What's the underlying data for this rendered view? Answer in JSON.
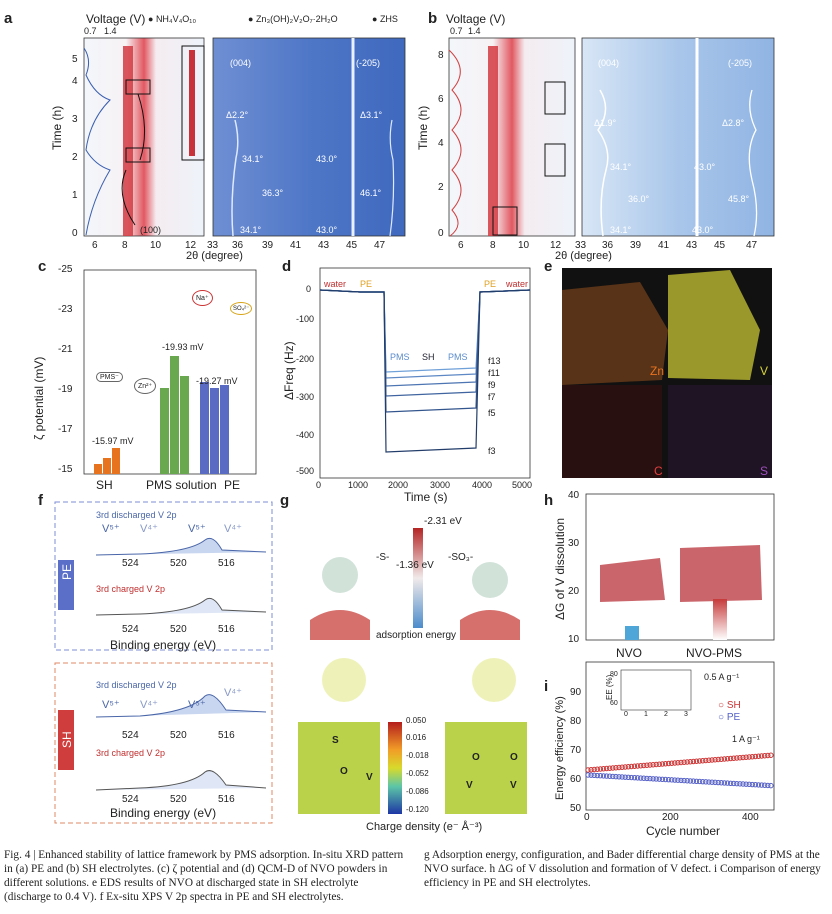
{
  "panels": {
    "a": {
      "label": "a",
      "axis_top": "Voltage (V)",
      "voltage_ticks": [
        "0.7",
        "1.4"
      ],
      "legend": [
        "NH₄V₄O₁₀",
        "Zn₃(OH)₂V₂O₇·2H₂O",
        "ZHS"
      ],
      "ylabel": "Time (h)",
      "yticks": [
        "0",
        "1",
        "2",
        "3",
        "4",
        "5"
      ],
      "xticks_left": [
        "6",
        "8",
        "10",
        "12"
      ],
      "xticks_right": [
        "33",
        "36",
        "39",
        "41",
        "43",
        "45",
        "47"
      ],
      "xlabel": "2θ (degree)",
      "annotations": [
        "(004)",
        "(-205)",
        "Δ2.2°",
        "Δ3.1°",
        "34.1°",
        "43.0°",
        "36.3°",
        "46.1°",
        "34.1°",
        "43.0°",
        "(100)"
      ]
    },
    "b": {
      "label": "b",
      "axis_top": "Voltage (V)",
      "voltage_ticks": [
        "0.7",
        "1.4"
      ],
      "ylabel": "Time (h)",
      "yticks": [
        "0",
        "2",
        "4",
        "6",
        "8"
      ],
      "xticks_left": [
        "6",
        "8",
        "10",
        "12"
      ],
      "xticks_right": [
        "33",
        "36",
        "39",
        "41",
        "43",
        "45",
        "47"
      ],
      "xlabel": "2θ (degree)",
      "annotations": [
        "(004)",
        "(-205)",
        "Δ1.9°",
        "Δ2.8°",
        "34.1°",
        "43.0°",
        "36.0°",
        "45.8°",
        "34.1°",
        "43.0°"
      ]
    },
    "c": {
      "label": "c",
      "ylabel": "ζ potential (mV)",
      "yticks": [
        "-25",
        "-23",
        "-21",
        "-19",
        "-17",
        "-15"
      ],
      "categories": [
        "SH",
        "PMS solution",
        "PE"
      ],
      "value_labels": [
        "-15.97 mV",
        "-19.93 mV",
        "-19.27 mV"
      ],
      "pms_tag": "PMS⁻",
      "zn_tag": "Zn²⁺",
      "na_tag": "Na⁺",
      "so_tag": "SO₄²⁻"
    },
    "d": {
      "label": "d",
      "ylabel": "ΔFreq (Hz)",
      "xlabel": "Time (s)",
      "xticks": [
        "0",
        "1000",
        "2000",
        "3000",
        "4000",
        "5000"
      ],
      "yticks": [
        "0",
        "-100",
        "-200",
        "-300",
        "-400",
        "-500"
      ],
      "labels": [
        "water",
        "PE",
        "PMS",
        "SH",
        "PMS",
        "PE",
        "water"
      ],
      "harmonics": [
        "f13",
        "f11",
        "f9",
        "f7",
        "f5",
        "f3"
      ]
    },
    "e": {
      "label": "e",
      "elements": [
        "Zn",
        "V",
        "C",
        "S"
      ]
    },
    "f": {
      "label": "f",
      "groups": [
        "PE",
        "SH"
      ],
      "discharged": "3rd discharged V 2p",
      "charged": "3rd charged V 2p",
      "peaks": [
        "V⁵⁺",
        "V⁴⁺",
        "V⁵⁺",
        "V⁴⁺"
      ],
      "xticks": [
        "524",
        "520",
        "516"
      ],
      "xlabel": "Binding energy (eV)"
    },
    "g": {
      "label": "g",
      "energies": [
        "-2.31 eV",
        "-1.36 eV"
      ],
      "groups": [
        "-S-",
        "-SO₃-"
      ],
      "energy_label": "adsorption energy",
      "colorbar_ticks": [
        "0.050",
        "0.016",
        "-0.018",
        "-0.052",
        "-0.086",
        "-0.120"
      ],
      "xlabel": "Charge density (e⁻ Å⁻³)",
      "atoms": [
        "S",
        "O",
        "V",
        "O",
        "O",
        "V",
        "V"
      ]
    },
    "h": {
      "label": "h",
      "ylabel": "ΔG of V dissolution",
      "yticks": [
        "10",
        "20",
        "30",
        "40"
      ],
      "categories": [
        "NVO",
        "NVO-PMS"
      ]
    },
    "i": {
      "label": "i",
      "ylabel": "Energy efficiency (%)",
      "xlabel": "Cycle number",
      "yticks": [
        "50",
        "60",
        "70",
        "80",
        "90"
      ],
      "xticks": [
        "0",
        "200",
        "400"
      ],
      "legend": [
        "SH",
        "PE"
      ],
      "rate1": "0.5 A g⁻¹",
      "rate2": "1 A g⁻¹",
      "inset_ylabel": "EE (%)",
      "inset_yticks": [
        "80",
        "60"
      ],
      "inset_xticks": [
        "0",
        "1",
        "2",
        "3"
      ]
    }
  },
  "caption": {
    "left": "Fig. 4 | Enhanced stability of lattice framework by PMS adsorption. In-situ XRD pattern in (a) PE and (b) SH electrolytes. (c) ζ potential and (d) QCM-D of NVO powders in different solutions. e EDS results of NVO at discharged state in SH electrolyte (discharge to 0.4 V). f Ex-situ XPS V 2p spectra in PE and SH electrolytes.",
    "right": "g Adsorption energy, configuration, and Bader differential charge density of PMS at the NVO surface. h ΔG of V dissolution and formation of V defect. i Comparison of energy efficiency in PE and SH electrolytes."
  },
  "colors": {
    "red": "#d0282a",
    "blue": "#3b6fc4",
    "green": "#6aa84f",
    "orange": "#e8731e",
    "purple": "#5a6bc4"
  }
}
